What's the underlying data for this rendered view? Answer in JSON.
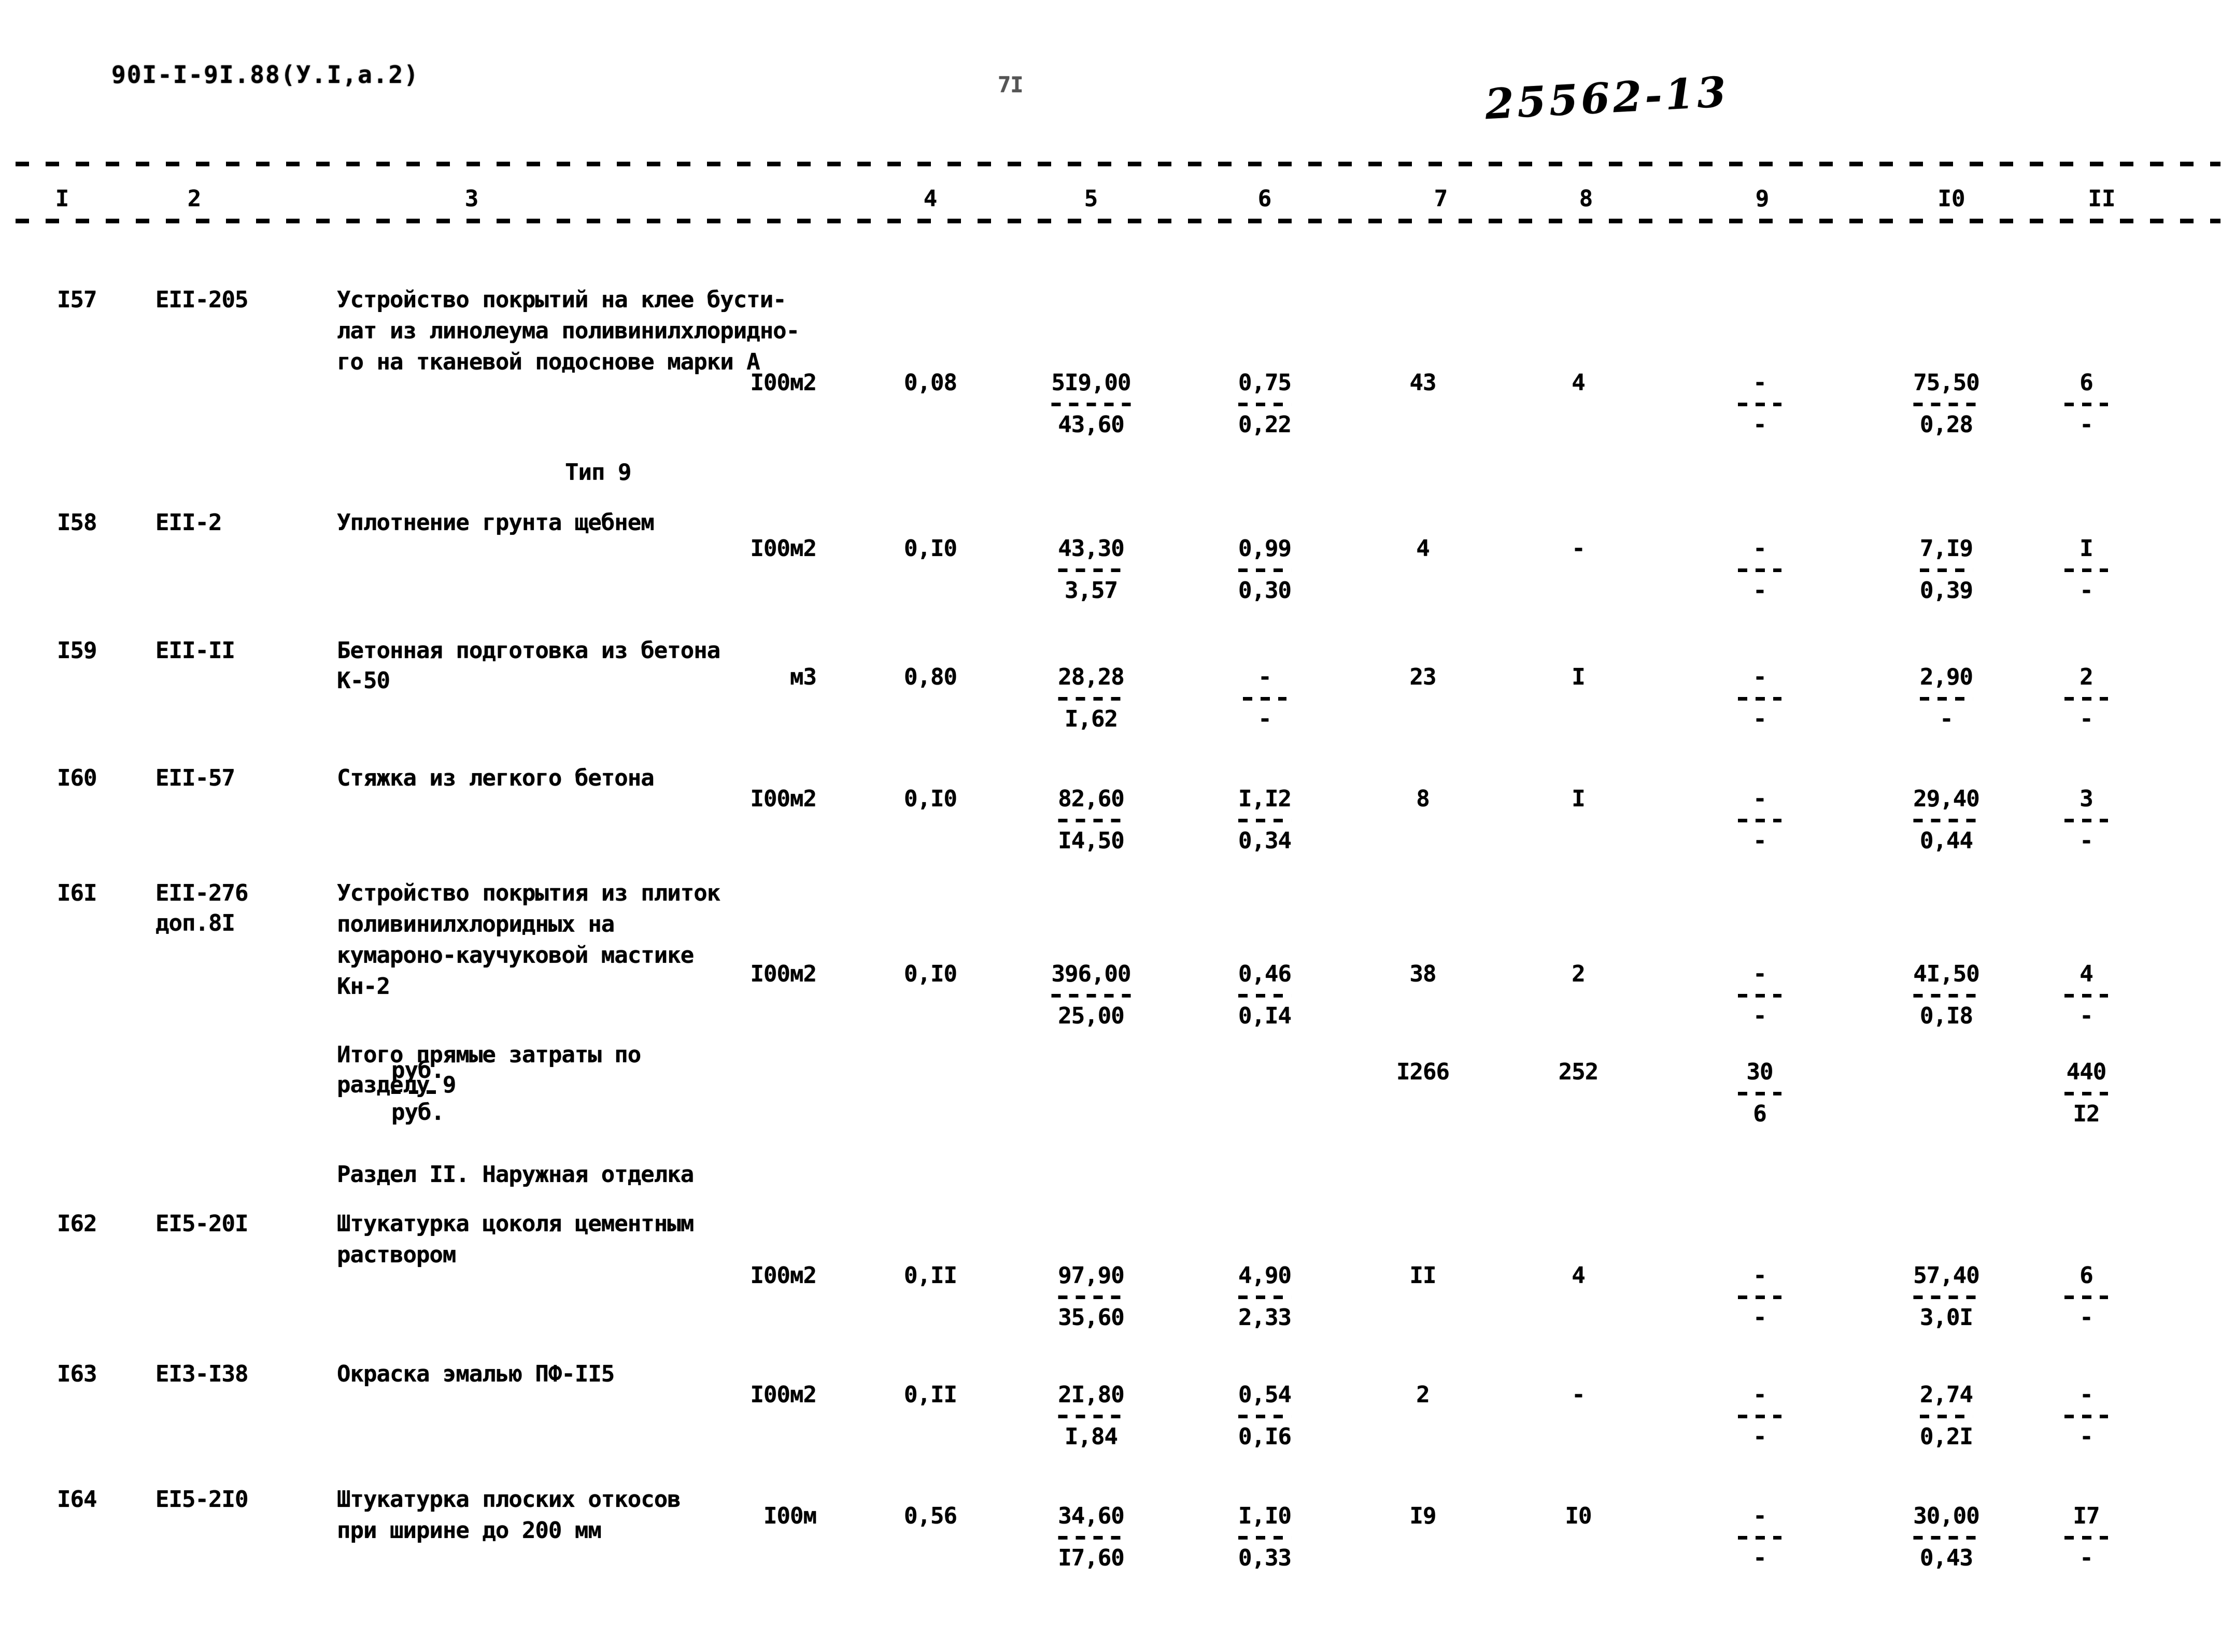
{
  "page": {
    "doc_id": "90I-I-9I.88(У.I,а.2)",
    "page_number": "7I",
    "handwritten_mark": "25562-13"
  },
  "table": {
    "column_headers": [
      "I",
      "2",
      "3",
      "4",
      "5",
      "6",
      "7",
      "8",
      "9",
      "I0",
      "II"
    ],
    "rows": [
      {
        "type": "item",
        "num": "I57",
        "code": "EII-205",
        "desc": [
          "Устройство покрытий на клее бусти-",
          "лат из линолеума поливинилхлоридно-",
          "го на тканевой подоснове марки А"
        ],
        "unit": "I00м2",
        "cols": {
          "c4": "0,08",
          "c5": {
            "top": "5I9,00",
            "bottom": "43,60"
          },
          "c6": {
            "top": "0,75",
            "bottom": "0,22"
          },
          "c7": "43",
          "c8": "4",
          "c9": {
            "top": "-",
            "bottom": "-"
          },
          "c10": {
            "top": "75,50",
            "bottom": "0,28"
          },
          "c11": {
            "top": "6",
            "bottom": "-"
          }
        }
      },
      {
        "type": "note",
        "text": "Тип 9"
      },
      {
        "type": "item",
        "num": "I58",
        "code": "EII-2",
        "desc": [
          "Уплотнение грунта щебнем"
        ],
        "unit": "I00м2",
        "cols": {
          "c4": "0,I0",
          "c5": {
            "top": "43,30",
            "bottom": "3,57"
          },
          "c6": {
            "top": "0,99",
            "bottom": "0,30"
          },
          "c7": "4",
          "c8": "-",
          "c9": {
            "top": "-",
            "bottom": "-"
          },
          "c10": {
            "top": "7,I9",
            "bottom": "0,39"
          },
          "c11": {
            "top": "I",
            "bottom": "-"
          }
        }
      },
      {
        "type": "item",
        "num": "I59",
        "code": "EII-II",
        "desc": [
          "Бетонная подготовка из бетона",
          "К-50"
        ],
        "unit": "м3",
        "cols": {
          "c4": "0,80",
          "c5": {
            "top": "28,28",
            "bottom": "I,62"
          },
          "c6": {
            "top": "-",
            "bottom": "-"
          },
          "c7": "23",
          "c8": "I",
          "c9": {
            "top": "-",
            "bottom": "-"
          },
          "c10": {
            "top": "2,90",
            "bottom": "-"
          },
          "c11": {
            "top": "2",
            "bottom": "-"
          }
        }
      },
      {
        "type": "item",
        "num": "I60",
        "code": "EII-57",
        "desc": [
          "Стяжка из легкого бетона"
        ],
        "unit": "I00м2",
        "cols": {
          "c4": "0,I0",
          "c5": {
            "top": "82,60",
            "bottom": "I4,50"
          },
          "c6": {
            "top": "I,I2",
            "bottom": "0,34"
          },
          "c7": "8",
          "c8": "I",
          "c9": {
            "top": "-",
            "bottom": "-"
          },
          "c10": {
            "top": "29,40",
            "bottom": "0,44"
          },
          "c11": {
            "top": "3",
            "bottom": "-"
          }
        }
      },
      {
        "type": "item",
        "num": "I6I",
        "code": "EII-276",
        "code2": "доп.8I",
        "desc": [
          "Устройство покрытия из плиток",
          "поливинилхлоридных на",
          "кумароно-каучуковой мастике",
          "Кн-2"
        ],
        "unit": "I00м2",
        "cols": {
          "c4": "0,I0",
          "c5": {
            "top": "396,00",
            "bottom": "25,00"
          },
          "c6": {
            "top": "0,46",
            "bottom": "0,I4"
          },
          "c7": "38",
          "c8": "2",
          "c9": {
            "top": "-",
            "bottom": "-"
          },
          "c10": {
            "top": "4I,50",
            "bottom": "0,I8"
          },
          "c11": {
            "top": "4",
            "bottom": "-"
          }
        }
      },
      {
        "type": "total",
        "desc": [
          "Итого прямые затраты по",
          "разделу 9"
        ],
        "unit": {
          "top": "руб.",
          "bottom": "руб."
        },
        "cols": {
          "c7": "I266",
          "c8": "252",
          "c9": {
            "top": "30",
            "bottom": "6"
          },
          "c11": {
            "top": "440",
            "bottom": "I2"
          }
        }
      },
      {
        "type": "section",
        "text": "Раздел II. Наружная отделка"
      },
      {
        "type": "item",
        "num": "I62",
        "code": "EI5-20I",
        "desc": [
          "Штукатурка цоколя цементным",
          "раствором"
        ],
        "unit": "I00м2",
        "cols": {
          "c4": "0,II",
          "c5": {
            "top": "97,90",
            "bottom": "35,60"
          },
          "c6": {
            "top": "4,90",
            "bottom": "2,33"
          },
          "c7": "II",
          "c8": "4",
          "c9": {
            "top": "-",
            "bottom": "-"
          },
          "c10": {
            "top": "57,40",
            "bottom": "3,0I"
          },
          "c11": {
            "top": "6",
            "bottom": "-"
          }
        }
      },
      {
        "type": "item",
        "num": "I63",
        "code": "EI3-I38",
        "desc": [
          "Окраска эмалью ПФ-II5"
        ],
        "unit": "I00м2",
        "cols": {
          "c4": "0,II",
          "c5": {
            "top": "2I,80",
            "bottom": "I,84"
          },
          "c6": {
            "top": "0,54",
            "bottom": "0,I6"
          },
          "c7": "2",
          "c8": "-",
          "c9": {
            "top": "-",
            "bottom": "-"
          },
          "c10": {
            "top": "2,74",
            "bottom": "0,2I"
          },
          "c11": {
            "top": "-",
            "bottom": "-"
          }
        }
      },
      {
        "type": "item",
        "num": "I64",
        "code": "EI5-2I0",
        "desc": [
          "Штукатурка плоских откосов",
          "при ширине до 200 мм"
        ],
        "unit": "I00м",
        "cols": {
          "c4": "0,56",
          "c5": {
            "top": "34,60",
            "bottom": "I7,60"
          },
          "c6": {
            "top": "I,I0",
            "bottom": "0,33"
          },
          "c7": "I9",
          "c8": "I0",
          "c9": {
            "top": "-",
            "bottom": "-"
          },
          "c10": {
            "top": "30,00",
            "bottom": "0,43"
          },
          "c11": {
            "top": "I7",
            "bottom": "-"
          }
        }
      }
    ]
  }
}
